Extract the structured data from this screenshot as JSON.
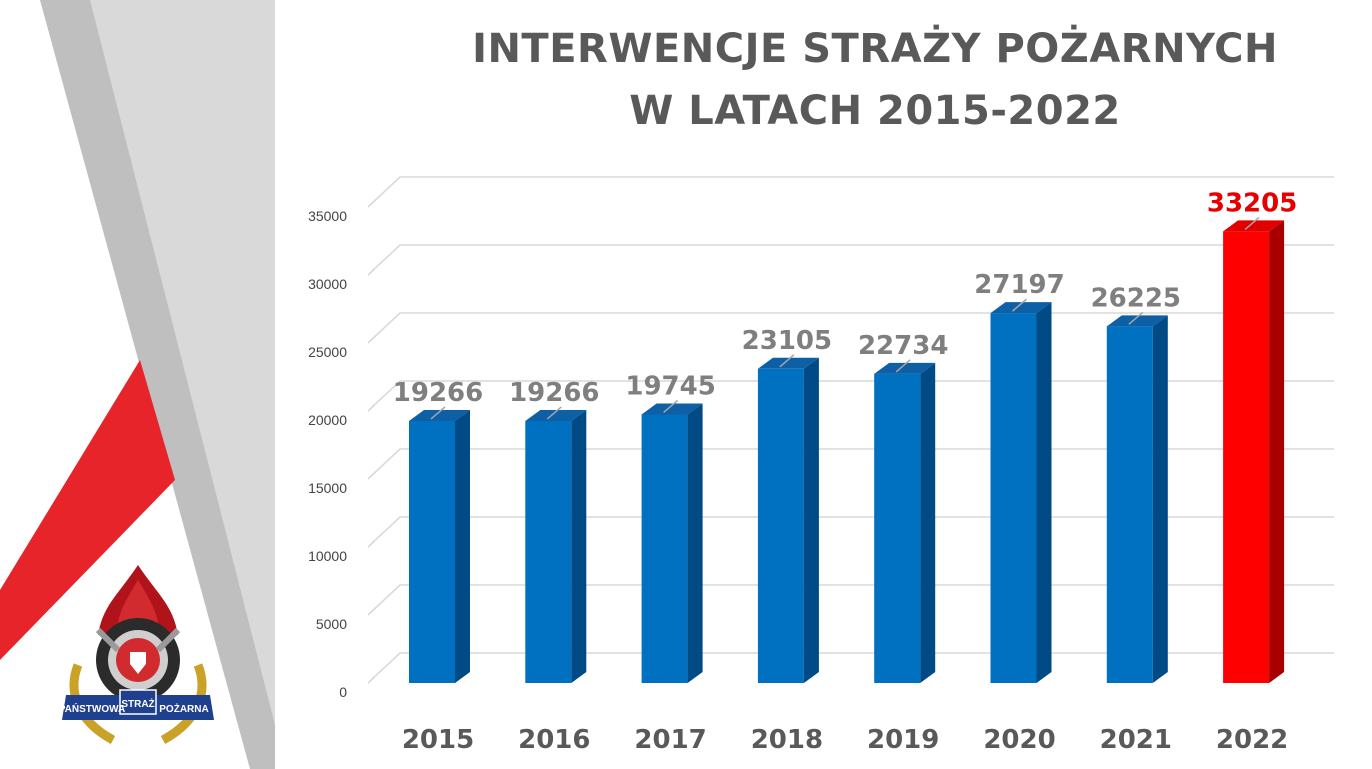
{
  "chart_data": {
    "type": "bar",
    "title_lines": [
      "INTERWENCJE STRAŻY POŻARNYCH",
      "W LATACH 2015-2022"
    ],
    "categories": [
      "2015",
      "2016",
      "2017",
      "2018",
      "2019",
      "2020",
      "2021",
      "2022"
    ],
    "values": [
      19266,
      19266,
      19745,
      23105,
      22734,
      27197,
      26225,
      33205
    ],
    "data_labels": [
      "19266",
      "19266",
      "19745",
      "23105",
      "22734",
      "27197",
      "26225",
      "33205"
    ],
    "yticks": [
      0,
      5000,
      10000,
      15000,
      20000,
      25000,
      30000,
      35000
    ],
    "ylim": [
      0,
      35000
    ],
    "grid": true,
    "legend": "none",
    "style": "3d-columns",
    "highlight_index": 7,
    "colors": {
      "bar": "#0070c0",
      "highlight": "#ff0000",
      "highlight_label": "#e60000",
      "label": "#7f7f7f"
    }
  },
  "logo": {
    "text_left": "PAŃSTWOWA",
    "text_center": "STRAŻ",
    "text_right": "POŻARNA",
    "icon": "fire-service-emblem-icon"
  }
}
